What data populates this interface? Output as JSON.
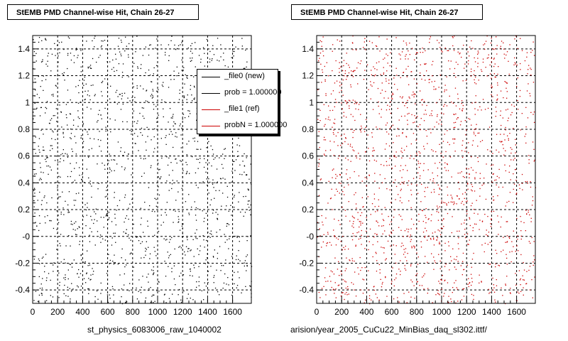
{
  "titles": {
    "left": "StEMB PMD Channel-wise Hit, Chain 26-27",
    "right": "StEMB PMD Channel-wise Hit, Chain 26-27"
  },
  "xlabels": {
    "left": "st_physics_6083006_raw_1040002",
    "right": "arision/year_2005_CuCu22_MinBias_daq_sl302.ittf/"
  },
  "legend": {
    "entries": [
      {
        "label": "_file0 (new)",
        "color": "#000000"
      },
      {
        "label": "prob = 1.000000",
        "color": "#000000"
      },
      {
        "label": "_file1 (ref)",
        "color": "#cc0000"
      },
      {
        "label": "probN = 1.000000",
        "color": "#cc0000"
      }
    ]
  },
  "footer": "",
  "chart_data": [
    {
      "type": "scatter",
      "title": "StEMB PMD Channel-wise Hit, Chain 26-27",
      "xlabel": "st_physics_6083006_raw_1040002",
      "ylabel": "",
      "xlim": [
        0,
        1750
      ],
      "ylim": [
        -0.5,
        1.5
      ],
      "xticks": [
        0,
        200,
        400,
        600,
        800,
        1000,
        1200,
        1400,
        1600
      ],
      "xtick_labels": [
        "0",
        "200",
        "400",
        "600",
        "800",
        "1000",
        "1200",
        "1400",
        "1600"
      ],
      "yticks": [
        -0.4,
        -0.2,
        0,
        0.2,
        0.4,
        0.6,
        0.8,
        1,
        1.2,
        1.4
      ],
      "ytick_labels": [
        "-0.4",
        "-0.2",
        "-0",
        "0.2",
        "0.4",
        "0.6",
        "0.8",
        "1",
        "1.2",
        "1.4"
      ],
      "grid": true,
      "marker_color": "#000000",
      "series": [
        {
          "name": "_file0 (new)",
          "n_points": 1400,
          "seed": 17
        }
      ]
    },
    {
      "type": "scatter",
      "title": "StEMB PMD Channel-wise Hit, Chain 26-27",
      "xlabel": "arision/year_2005_CuCu22_MinBias_daq_sl302.ittf/",
      "ylabel": "",
      "xlim": [
        0,
        1750
      ],
      "ylim": [
        -0.5,
        1.5
      ],
      "xticks": [
        0,
        200,
        400,
        600,
        800,
        1000,
        1200,
        1400,
        1600
      ],
      "xtick_labels": [
        "0",
        "200",
        "400",
        "600",
        "800",
        "1000",
        "1200",
        "1400",
        "1600"
      ],
      "yticks": [
        -0.4,
        -0.2,
        0,
        0.2,
        0.4,
        0.6,
        0.8,
        1,
        1.2,
        1.4
      ],
      "ytick_labels": [
        "-0.4",
        "-0.2",
        "-0",
        "0.2",
        "0.4",
        "0.6",
        "0.8",
        "1",
        "1.2",
        "1.4"
      ],
      "grid": true,
      "marker_color": "#cc0000",
      "series": [
        {
          "name": "_file1 (ref)",
          "n_points": 1600,
          "seed": 91
        }
      ]
    }
  ]
}
